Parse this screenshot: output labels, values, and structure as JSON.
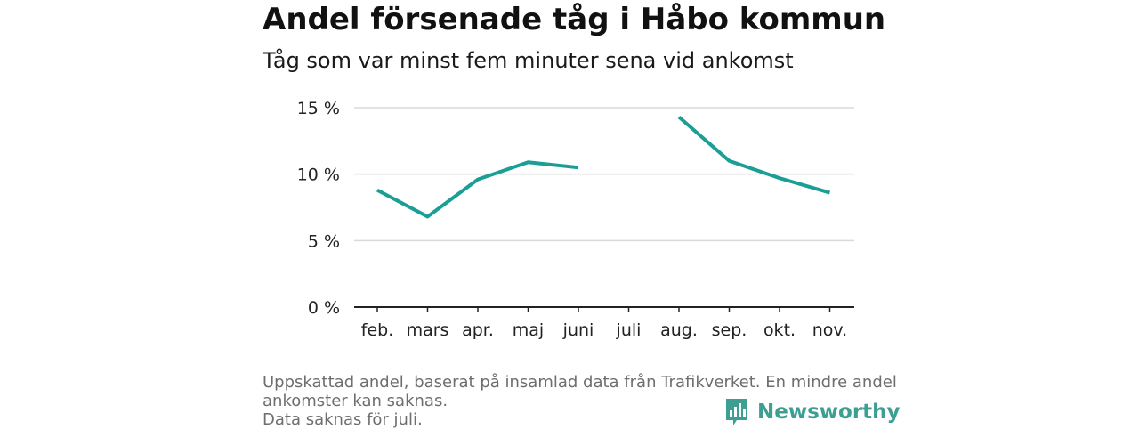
{
  "header": {
    "title": "Andel försenade tåg i Håbo kommun",
    "subtitle": "Tåg som var minst fem minuter sena vid ankomst"
  },
  "footnote": {
    "line1": "Uppskattad andel, baserat på insamlad data från Trafikverket. En mindre andel",
    "line2": "ankomster kan saknas.",
    "line3": "Data saknas för juli."
  },
  "brand": {
    "name": "Newsworthy",
    "icon": "newsworthy-logo-icon",
    "color": "#3d9e92"
  },
  "colors": {
    "line": "#1a9e96",
    "grid": "#d9d9d9",
    "axis": "#222222"
  },
  "chart_data": {
    "type": "line",
    "title": "Andel försenade tåg i Håbo kommun",
    "subtitle": "Tåg som var minst fem minuter sena vid ankomst",
    "categories": [
      "feb.",
      "mars",
      "apr.",
      "maj",
      "juni",
      "juli",
      "aug.",
      "sep.",
      "okt.",
      "nov."
    ],
    "series": [
      {
        "values": [
          8.8,
          6.8,
          9.6,
          10.9,
          10.5,
          null,
          14.3,
          11.0,
          9.7,
          8.6
        ]
      }
    ],
    "ylim": [
      0,
      15
    ],
    "yticks": [
      0,
      5,
      10,
      15
    ],
    "ytick_labels": [
      "0 %",
      "5 %",
      "10 %",
      "15 %"
    ],
    "grid": true,
    "legend": "none"
  }
}
